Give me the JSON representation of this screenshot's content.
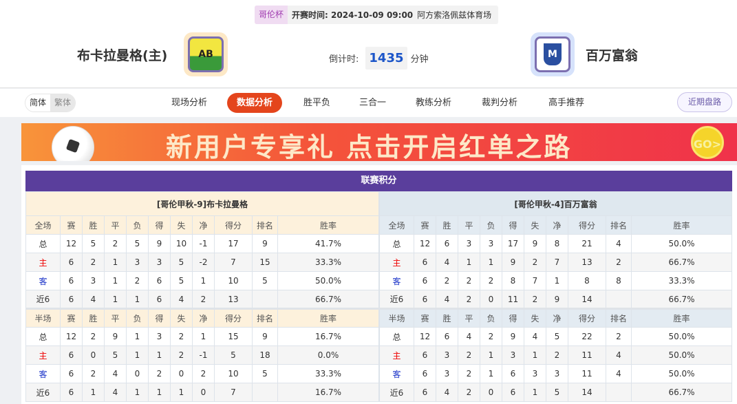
{
  "match": {
    "cup": "哥伦杯",
    "time_label": "开赛时间:",
    "time": "2024-10-09 09:00",
    "venue": "阿方索洛佩兹体育场"
  },
  "home": {
    "name": "布卡拉曼格(主)",
    "logo_text": "AB"
  },
  "away": {
    "name": "百万富翁",
    "logo_text": "M"
  },
  "countdown": {
    "label": "倒计时:",
    "value": "1435",
    "unit": "分钟"
  },
  "lang": {
    "simplified": "简体",
    "traditional": "繁体"
  },
  "tabs": [
    "现场分析",
    "数据分析",
    "胜平负",
    "三合一",
    "教练分析",
    "裁判分析",
    "高手推荐"
  ],
  "active_tab": "数据分析",
  "recent_button": "近期盘路",
  "banner": {
    "text": "新用户专享礼  点击开启红单之路",
    "go": "GO>"
  },
  "standings": {
    "title": "联赛积分",
    "columns": [
      "赛",
      "胜",
      "平",
      "负",
      "得",
      "失",
      "净",
      "得分",
      "排名",
      "胜率"
    ],
    "full_label": "全场",
    "half_label": "半场",
    "home": {
      "header": "[哥伦甲秋-9]布卡拉曼格",
      "full": [
        [
          "总",
          "12",
          "5",
          "2",
          "5",
          "9",
          "10",
          "-1",
          "17",
          "9",
          "41.7%"
        ],
        [
          "主",
          "6",
          "2",
          "1",
          "3",
          "3",
          "5",
          "-2",
          "7",
          "15",
          "33.3%"
        ],
        [
          "客",
          "6",
          "3",
          "1",
          "2",
          "6",
          "5",
          "1",
          "10",
          "5",
          "50.0%"
        ],
        [
          "近6",
          "6",
          "4",
          "1",
          "1",
          "6",
          "4",
          "2",
          "13",
          "",
          "66.7%"
        ]
      ],
      "half": [
        [
          "总",
          "12",
          "2",
          "9",
          "1",
          "3",
          "2",
          "1",
          "15",
          "9",
          "16.7%"
        ],
        [
          "主",
          "6",
          "0",
          "5",
          "1",
          "1",
          "2",
          "-1",
          "5",
          "18",
          "0.0%"
        ],
        [
          "客",
          "6",
          "2",
          "4",
          "0",
          "2",
          "0",
          "2",
          "10",
          "5",
          "33.3%"
        ],
        [
          "近6",
          "6",
          "1",
          "4",
          "1",
          "1",
          "1",
          "0",
          "7",
          "",
          "16.7%"
        ]
      ]
    },
    "away": {
      "header": "[哥伦甲秋-4]百万富翁",
      "full": [
        [
          "总",
          "12",
          "6",
          "3",
          "3",
          "17",
          "9",
          "8",
          "21",
          "4",
          "50.0%"
        ],
        [
          "主",
          "6",
          "4",
          "1",
          "1",
          "9",
          "2",
          "7",
          "13",
          "2",
          "66.7%"
        ],
        [
          "客",
          "6",
          "2",
          "2",
          "2",
          "8",
          "7",
          "1",
          "8",
          "8",
          "33.3%"
        ],
        [
          "近6",
          "6",
          "4",
          "2",
          "0",
          "11",
          "2",
          "9",
          "14",
          "",
          "66.7%"
        ]
      ],
      "half": [
        [
          "总",
          "12",
          "6",
          "4",
          "2",
          "9",
          "4",
          "5",
          "22",
          "2",
          "50.0%"
        ],
        [
          "主",
          "6",
          "3",
          "2",
          "1",
          "3",
          "1",
          "2",
          "11",
          "4",
          "50.0%"
        ],
        [
          "客",
          "6",
          "3",
          "2",
          "1",
          "6",
          "3",
          "3",
          "11",
          "4",
          "50.0%"
        ],
        [
          "近6",
          "6",
          "4",
          "2",
          "0",
          "6",
          "1",
          "5",
          "14",
          "",
          "66.7%"
        ]
      ]
    }
  },
  "colors": {
    "accent": "#e4451c",
    "title_bg": "#5a3e9c",
    "home_row": "#e00000",
    "away_row": "#1a32c8"
  }
}
